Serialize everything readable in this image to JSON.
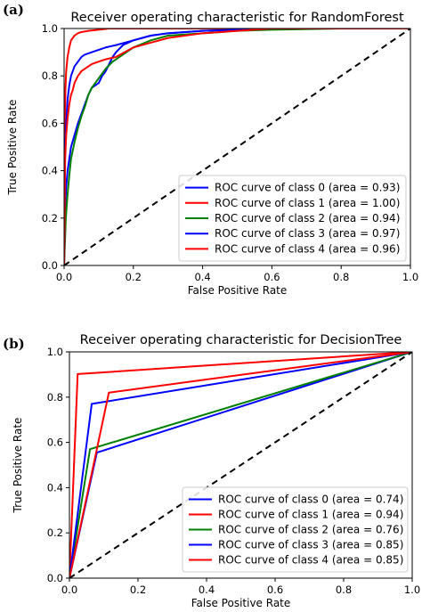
{
  "chart_data": [
    {
      "panel_label": "(a)",
      "type": "line",
      "title": "Receiver operating characteristic for RandomForest",
      "xlabel": "False Positive Rate",
      "ylabel": "True Positive Rate",
      "xlim": [
        0,
        1
      ],
      "ylim": [
        0,
        1
      ],
      "xticks": [
        "0.0",
        "0.2",
        "0.4",
        "0.6",
        "0.8",
        "1.0"
      ],
      "yticks": [
        "0.0",
        "0.2",
        "0.4",
        "0.6",
        "0.8",
        "1.0"
      ],
      "legend_position": "lower-right",
      "diagonal": {
        "x": [
          0,
          1
        ],
        "y": [
          0,
          1
        ],
        "color": "#000000",
        "style": "dashed"
      },
      "series": [
        {
          "name": "ROC curve of class 0 (area = 0.93)",
          "color": "#0000ff",
          "x": [
            0,
            0.003,
            0.006,
            0.01,
            0.015,
            0.02,
            0.03,
            0.04,
            0.05,
            0.06,
            0.07,
            0.08,
            0.09,
            0.1,
            0.11,
            0.12,
            0.13,
            0.14,
            0.15,
            0.17,
            0.2,
            0.25,
            0.3,
            0.4,
            0.5,
            0.6,
            0.8,
            1.0
          ],
          "y": [
            0,
            0.25,
            0.33,
            0.4,
            0.45,
            0.5,
            0.55,
            0.6,
            0.64,
            0.68,
            0.72,
            0.75,
            0.76,
            0.77,
            0.8,
            0.82,
            0.85,
            0.88,
            0.9,
            0.93,
            0.95,
            0.97,
            0.98,
            0.99,
            0.995,
            1.0,
            1.0,
            1.0
          ]
        },
        {
          "name": "ROC curve of class 1 (area = 1.00)",
          "color": "#ff0000",
          "x": [
            0,
            0.002,
            0.004,
            0.006,
            0.01,
            0.015,
            0.02,
            0.025,
            0.03,
            0.04,
            0.05,
            0.07,
            0.1,
            0.13,
            0.2,
            0.4,
            0.6,
            1.0
          ],
          "y": [
            0,
            0.6,
            0.75,
            0.82,
            0.88,
            0.92,
            0.95,
            0.96,
            0.97,
            0.98,
            0.985,
            0.99,
            0.995,
            1.0,
            1.0,
            1.0,
            1.0,
            1.0
          ]
        },
        {
          "name": "ROC curve of class 2 (area = 0.94)",
          "color": "#008000",
          "x": [
            0,
            0.005,
            0.01,
            0.015,
            0.02,
            0.03,
            0.04,
            0.05,
            0.06,
            0.07,
            0.08,
            0.1,
            0.12,
            0.14,
            0.16,
            0.18,
            0.2,
            0.25,
            0.3,
            0.4,
            0.5,
            0.6,
            0.8,
            1.0
          ],
          "y": [
            0,
            0.2,
            0.3,
            0.38,
            0.45,
            0.52,
            0.58,
            0.63,
            0.67,
            0.72,
            0.75,
            0.79,
            0.83,
            0.86,
            0.88,
            0.9,
            0.92,
            0.95,
            0.97,
            0.98,
            0.99,
            0.995,
            1.0,
            1.0
          ]
        },
        {
          "name": "ROC curve of class 3 (area = 0.97)",
          "color": "#0000ff",
          "x": [
            0,
            0.003,
            0.006,
            0.01,
            0.015,
            0.02,
            0.025,
            0.03,
            0.04,
            0.05,
            0.06,
            0.08,
            0.1,
            0.12,
            0.15,
            0.2,
            0.25,
            0.3,
            0.4,
            0.5,
            0.6,
            0.8,
            1.0
          ],
          "y": [
            0,
            0.5,
            0.6,
            0.7,
            0.76,
            0.8,
            0.82,
            0.84,
            0.86,
            0.88,
            0.89,
            0.9,
            0.91,
            0.92,
            0.93,
            0.95,
            0.97,
            0.98,
            0.99,
            0.995,
            1.0,
            1.0,
            1.0
          ]
        },
        {
          "name": "ROC curve of class 4 (area = 0.96)",
          "color": "#ff0000",
          "x": [
            0,
            0.003,
            0.006,
            0.01,
            0.015,
            0.02,
            0.025,
            0.03,
            0.04,
            0.05,
            0.06,
            0.07,
            0.08,
            0.1,
            0.12,
            0.15,
            0.2,
            0.25,
            0.3,
            0.4,
            0.5,
            0.6,
            0.8,
            1.0
          ],
          "y": [
            0,
            0.45,
            0.55,
            0.62,
            0.68,
            0.72,
            0.74,
            0.77,
            0.8,
            0.82,
            0.83,
            0.84,
            0.85,
            0.86,
            0.87,
            0.88,
            0.92,
            0.94,
            0.96,
            0.98,
            0.99,
            1.0,
            1.0,
            1.0
          ]
        }
      ]
    },
    {
      "panel_label": "(b)",
      "type": "line",
      "title": "Receiver operating characteristic for DecisionTree",
      "xlabel": "False Positive Rate",
      "ylabel": "True Positive Rate",
      "xlim": [
        0,
        1
      ],
      "ylim": [
        0,
        1
      ],
      "xticks": [
        "0.0",
        "0.2",
        "0.4",
        "0.6",
        "0.8",
        "1.0"
      ],
      "yticks": [
        "0.0",
        "0.2",
        "0.4",
        "0.6",
        "0.8",
        "1.0"
      ],
      "legend_position": "lower-right",
      "diagonal": {
        "x": [
          0,
          1
        ],
        "y": [
          0,
          1
        ],
        "color": "#000000",
        "style": "dashed"
      },
      "series": [
        {
          "name": "ROC curve of class 0 (area = 0.74)",
          "color": "#0000ff",
          "x": [
            0,
            0.08,
            1.0
          ],
          "y": [
            0,
            0.555,
            1.0
          ]
        },
        {
          "name": "ROC curve of class 1 (area = 0.94)",
          "color": "#ff0000",
          "x": [
            0,
            0.024,
            1.0
          ],
          "y": [
            0,
            0.902,
            1.0
          ]
        },
        {
          "name": "ROC curve of class 2 (area = 0.76)",
          "color": "#008000",
          "x": [
            0,
            0.06,
            1.0
          ],
          "y": [
            0,
            0.57,
            1.0
          ]
        },
        {
          "name": "ROC curve of class 3 (area = 0.85)",
          "color": "#0000ff",
          "x": [
            0,
            0.065,
            1.0
          ],
          "y": [
            0,
            0.77,
            1.0
          ]
        },
        {
          "name": "ROC curve of class 4 (area = 0.85)",
          "color": "#ff0000",
          "x": [
            0,
            0.115,
            1.0
          ],
          "y": [
            0,
            0.82,
            1.0
          ]
        }
      ]
    }
  ]
}
